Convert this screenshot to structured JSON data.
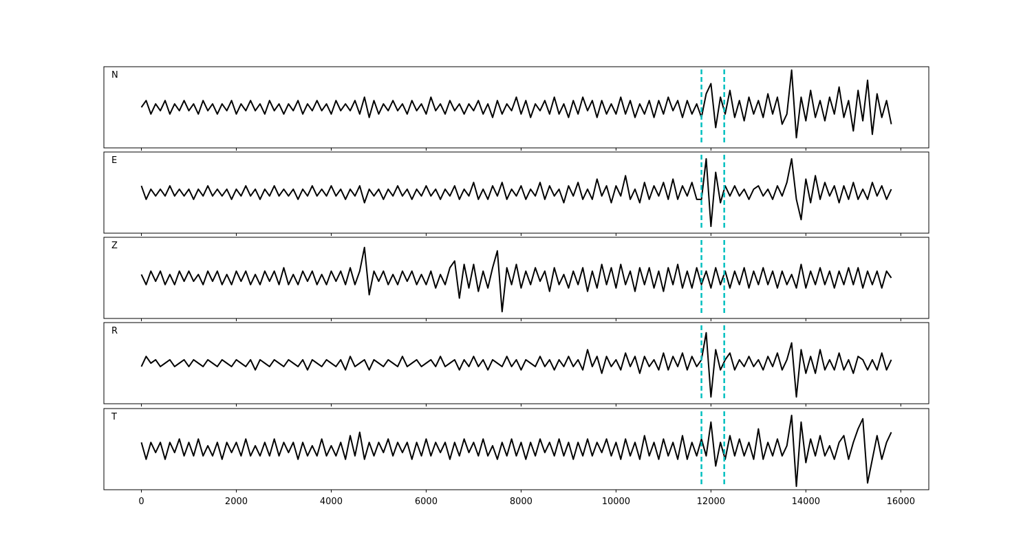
{
  "chart_data": {
    "type": "line",
    "x": [
      0,
      100,
      200,
      300,
      400,
      500,
      600,
      700,
      800,
      900,
      1000,
      1100,
      1200,
      1300,
      1400,
      1500,
      1600,
      1700,
      1800,
      1900,
      2000,
      2100,
      2200,
      2300,
      2400,
      2500,
      2600,
      2700,
      2800,
      2900,
      3000,
      3100,
      3200,
      3300,
      3400,
      3500,
      3600,
      3700,
      3800,
      3900,
      4000,
      4100,
      4200,
      4300,
      4400,
      4500,
      4600,
      4700,
      4800,
      4900,
      5000,
      5100,
      5200,
      5300,
      5400,
      5500,
      5600,
      5700,
      5800,
      5900,
      6000,
      6100,
      6200,
      6300,
      6400,
      6500,
      6600,
      6700,
      6800,
      6900,
      7000,
      7100,
      7200,
      7300,
      7400,
      7500,
      7600,
      7700,
      7800,
      7900,
      8000,
      8100,
      8200,
      8300,
      8400,
      8500,
      8600,
      8700,
      8800,
      8900,
      9000,
      9100,
      9200,
      9300,
      9400,
      9500,
      9600,
      9700,
      9800,
      9900,
      10000,
      10100,
      10200,
      10300,
      10400,
      10500,
      10600,
      10700,
      10800,
      10900,
      11000,
      11100,
      11200,
      11300,
      11400,
      11500,
      11600,
      11700,
      11800,
      11900,
      12000,
      12100,
      12200,
      12300,
      12400,
      12500,
      12600,
      12700,
      12800,
      12900,
      13000,
      13100,
      13200,
      13300,
      13400,
      13500,
      13600,
      13700,
      13800,
      13900,
      14000,
      14100,
      14200,
      14300,
      14400,
      14500,
      14600,
      14700,
      14800,
      14900,
      15000,
      15100,
      15200,
      15300,
      15400,
      15500,
      15600,
      15700,
      15800
    ],
    "series": [
      {
        "name": "N",
        "color": "#000000",
        "values": [
          0,
          2,
          -2,
          1,
          -1,
          2,
          -2,
          1,
          -1,
          2,
          -1,
          1,
          -2,
          2,
          -1,
          1,
          -2,
          1,
          -1,
          2,
          -2,
          1,
          -1,
          2,
          -1,
          1,
          -2,
          2,
          -1,
          1,
          -2,
          1,
          -1,
          2,
          -2,
          1,
          -1,
          2,
          -1,
          1,
          -2,
          2,
          -1,
          1,
          -1,
          2,
          -2,
          3,
          -3,
          2,
          -2,
          1,
          -1,
          2,
          -1,
          1,
          -2,
          2,
          -1,
          1,
          -2,
          3,
          -1,
          1,
          -2,
          2,
          -1,
          1,
          -2,
          1,
          -1,
          2,
          -2,
          1,
          -3,
          2,
          -2,
          1,
          -1,
          3,
          -2,
          2,
          -3,
          1,
          -1,
          2,
          -2,
          3,
          -2,
          1,
          -3,
          2,
          -2,
          3,
          -1,
          2,
          -3,
          2,
          -2,
          1,
          -2,
          3,
          -2,
          2,
          -3,
          1,
          -2,
          2,
          -3,
          2,
          -2,
          3,
          -1,
          2,
          -3,
          2,
          -2,
          1,
          -3,
          4,
          7,
          -6,
          3,
          -2,
          5,
          -3,
          2,
          -4,
          3,
          -2,
          2,
          -3,
          4,
          -2,
          3,
          -5,
          -2,
          11,
          -9,
          3,
          -4,
          5,
          -3,
          2,
          -4,
          3,
          -2,
          6,
          -3,
          2,
          -7,
          5,
          -4,
          8,
          -8,
          4,
          -3,
          2,
          -5
        ]
      },
      {
        "name": "E",
        "color": "#000000",
        "values": [
          2,
          -2,
          1,
          -1,
          1,
          -1,
          2,
          -1,
          1,
          -1,
          1,
          -2,
          1,
          -1,
          2,
          -1,
          1,
          -1,
          1,
          -2,
          1,
          -1,
          2,
          -1,
          1,
          -2,
          1,
          -1,
          2,
          -1,
          1,
          -1,
          1,
          -2,
          1,
          -1,
          2,
          -1,
          1,
          -1,
          2,
          -1,
          1,
          -2,
          1,
          -1,
          2,
          -3,
          1,
          -1,
          1,
          -2,
          1,
          -1,
          2,
          -1,
          1,
          -2,
          1,
          -1,
          2,
          -1,
          1,
          -2,
          1,
          -1,
          2,
          -2,
          1,
          -1,
          3,
          -2,
          1,
          -2,
          2,
          -1,
          3,
          -2,
          1,
          -1,
          2,
          -2,
          1,
          -1,
          3,
          -2,
          2,
          -1,
          1,
          -3,
          2,
          -1,
          3,
          -2,
          1,
          -2,
          4,
          -1,
          2,
          -3,
          2,
          -1,
          5,
          -2,
          1,
          -3,
          3,
          -2,
          2,
          -1,
          3,
          -2,
          4,
          -2,
          2,
          -1,
          3,
          -2,
          -2,
          10,
          -10,
          6,
          -3,
          2,
          -1,
          2,
          -1,
          1,
          -2,
          1,
          2,
          -1,
          1,
          -2,
          2,
          -1,
          3,
          10,
          -2,
          -8,
          4,
          -3,
          5,
          -2,
          3,
          -1,
          2,
          -3,
          2,
          -2,
          3,
          -2,
          1,
          -2,
          3,
          -1,
          2,
          -2,
          1
        ]
      },
      {
        "name": "Z",
        "color": "#000000",
        "values": [
          1,
          -2,
          2,
          -1,
          2,
          -2,
          1,
          -2,
          2,
          -1,
          2,
          -1,
          1,
          -2,
          2,
          -1,
          2,
          -2,
          1,
          -2,
          2,
          -1,
          2,
          -2,
          1,
          -2,
          2,
          -1,
          2,
          -2,
          3,
          -2,
          1,
          -2,
          2,
          -1,
          2,
          -2,
          1,
          -2,
          2,
          -1,
          2,
          -2,
          3,
          -2,
          2,
          9,
          -5,
          2,
          -1,
          2,
          -2,
          1,
          -2,
          2,
          -1,
          2,
          -2,
          1,
          -2,
          2,
          -3,
          1,
          -2,
          3,
          5,
          -6,
          4,
          -3,
          4,
          -4,
          2,
          -3,
          3,
          8,
          -10,
          3,
          -2,
          4,
          -3,
          2,
          -2,
          3,
          -1,
          2,
          -4,
          3,
          -2,
          1,
          -3,
          2,
          -2,
          3,
          -4,
          2,
          -3,
          4,
          -2,
          3,
          -3,
          4,
          -2,
          2,
          -4,
          3,
          -2,
          3,
          -3,
          2,
          -4,
          3,
          -2,
          4,
          -3,
          2,
          -3,
          3,
          -2,
          2,
          -3,
          3,
          -2,
          2,
          -3,
          2,
          -2,
          3,
          -3,
          2,
          -2,
          3,
          -2,
          2,
          -3,
          2,
          -2,
          1,
          -3,
          4,
          -3,
          2,
          -2,
          3,
          -2,
          2,
          -3,
          2,
          -2,
          3,
          -2,
          3,
          -3,
          2,
          -2,
          2,
          -3,
          2,
          0
        ]
      },
      {
        "name": "R",
        "color": "#000000",
        "values": [
          -1,
          2,
          0,
          1,
          -1,
          0,
          1,
          -1,
          0,
          1,
          -1,
          1,
          0,
          -1,
          1,
          0,
          -1,
          1,
          0,
          -1,
          1,
          0,
          -1,
          1,
          -2,
          1,
          0,
          -1,
          1,
          0,
          -1,
          1,
          0,
          -1,
          1,
          -2,
          1,
          0,
          -1,
          1,
          0,
          -1,
          1,
          -2,
          2,
          -1,
          0,
          1,
          -2,
          1,
          0,
          -1,
          1,
          0,
          -1,
          2,
          -1,
          0,
          1,
          -1,
          0,
          1,
          -1,
          2,
          -1,
          0,
          1,
          -2,
          1,
          -1,
          2,
          -1,
          1,
          -2,
          1,
          0,
          -1,
          2,
          -1,
          1,
          -2,
          1,
          0,
          -1,
          2,
          -1,
          1,
          -2,
          1,
          -1,
          2,
          -1,
          1,
          -2,
          4,
          -1,
          2,
          -3,
          2,
          -1,
          1,
          -2,
          3,
          -1,
          2,
          -3,
          2,
          -1,
          1,
          -2,
          3,
          -2,
          2,
          -1,
          3,
          -2,
          2,
          -1,
          1,
          9,
          -10,
          4,
          -2,
          1,
          3,
          -2,
          1,
          -1,
          2,
          -1,
          1,
          -2,
          2,
          -1,
          3,
          -2,
          1,
          6,
          -10,
          4,
          -3,
          2,
          -3,
          4,
          -2,
          1,
          -2,
          3,
          -2,
          1,
          -3,
          2,
          1,
          -2,
          1,
          -2,
          3,
          -2,
          1
        ]
      },
      {
        "name": "T",
        "color": "#000000",
        "values": [
          2,
          -3,
          2,
          -1,
          2,
          -3,
          2,
          -1,
          3,
          -2,
          2,
          -2,
          3,
          -2,
          1,
          -2,
          2,
          -3,
          2,
          -1,
          2,
          -2,
          3,
          -2,
          1,
          -2,
          2,
          -2,
          3,
          -2,
          2,
          -1,
          2,
          -3,
          2,
          -2,
          1,
          -2,
          3,
          -2,
          1,
          -2,
          2,
          -3,
          4,
          -2,
          5,
          -3,
          2,
          -2,
          2,
          -1,
          3,
          -2,
          2,
          -1,
          2,
          -3,
          2,
          -2,
          3,
          -2,
          2,
          -1,
          2,
          -3,
          2,
          -2,
          3,
          -1,
          2,
          -2,
          3,
          -2,
          1,
          -3,
          2,
          -2,
          3,
          -2,
          2,
          -3,
          2,
          -2,
          3,
          -1,
          2,
          -2,
          3,
          -2,
          2,
          -3,
          2,
          -2,
          3,
          -2,
          2,
          -1,
          3,
          -2,
          2,
          -3,
          3,
          -2,
          2,
          -3,
          4,
          -2,
          2,
          -3,
          3,
          -2,
          2,
          -3,
          4,
          -3,
          2,
          -2,
          3,
          -2,
          8,
          -5,
          2,
          -3,
          4,
          -2,
          3,
          -2,
          2,
          -3,
          6,
          -3,
          2,
          -2,
          3,
          -2,
          1,
          10,
          -11,
          8,
          -4,
          3,
          -2,
          4,
          -2,
          1,
          -3,
          2,
          4,
          -3,
          2,
          6,
          9,
          -10,
          -3,
          4,
          -3,
          2,
          5
        ]
      }
    ],
    "xlim": [
      -790,
      16590
    ],
    "xticks": [
      0,
      2000,
      4000,
      6000,
      8000,
      10000,
      12000,
      14000,
      16000
    ],
    "ylim": [
      -12,
      12
    ],
    "vlines": [
      11800,
      12280
    ],
    "vline_color": "#00bfbf"
  }
}
